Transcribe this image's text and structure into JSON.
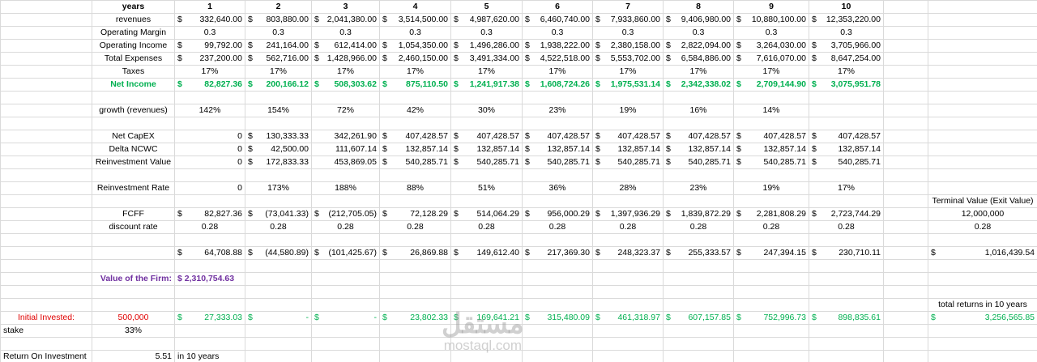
{
  "rows": [
    [
      null,
      "years",
      "1",
      "2",
      "3",
      "4",
      "5",
      "6",
      "7",
      "8",
      "9",
      "10",
      null,
      null
    ],
    [
      null,
      "revenues",
      [
        "$",
        "332,640.00"
      ],
      [
        "$",
        "803,880.00"
      ],
      [
        "$",
        "2,041,380.00"
      ],
      [
        "$",
        "3,514,500.00"
      ],
      [
        "$",
        "4,987,620.00"
      ],
      [
        "$",
        "6,460,740.00"
      ],
      [
        "$",
        "7,933,860.00"
      ],
      [
        "$",
        "9,406,980.00"
      ],
      [
        "$",
        "10,880,100.00"
      ],
      [
        "$",
        "12,353,220.00"
      ],
      null,
      null
    ],
    [
      null,
      "Operating Margin",
      "0.3",
      "0.3",
      "0.3",
      "0.3",
      "0.3",
      "0.3",
      "0.3",
      "0.3",
      "0.3",
      "0.3",
      null,
      null
    ],
    [
      null,
      "Operating Income",
      [
        "$",
        "99,792.00"
      ],
      [
        "$",
        "241,164.00"
      ],
      [
        "$",
        "612,414.00"
      ],
      [
        "$",
        "1,054,350.00"
      ],
      [
        "$",
        "1,496,286.00"
      ],
      [
        "$",
        "1,938,222.00"
      ],
      [
        "$",
        "2,380,158.00"
      ],
      [
        "$",
        "2,822,094.00"
      ],
      [
        "$",
        "3,264,030.00"
      ],
      [
        "$",
        "3,705,966.00"
      ],
      null,
      null
    ],
    [
      null,
      "Total Expenses",
      [
        "$",
        "237,200.00"
      ],
      [
        "$",
        "562,716.00"
      ],
      [
        "$",
        "1,428,966.00"
      ],
      [
        "$",
        "2,460,150.00"
      ],
      [
        "$",
        "3,491,334.00"
      ],
      [
        "$",
        "4,522,518.00"
      ],
      [
        "$",
        "5,553,702.00"
      ],
      [
        "$",
        "6,584,886.00"
      ],
      [
        "$",
        "7,616,070.00"
      ],
      [
        "$",
        "8,647,254.00"
      ],
      null,
      null
    ],
    [
      null,
      "Taxes",
      "17%",
      "17%",
      "17%",
      "17%",
      "17%",
      "17%",
      "17%",
      "17%",
      "17%",
      "17%",
      null,
      null
    ],
    [
      null,
      "Net Income",
      [
        "$",
        "82,827.36"
      ],
      [
        "$",
        "200,166.12"
      ],
      [
        "$",
        "508,303.62"
      ],
      [
        "$",
        "875,110.50"
      ],
      [
        "$",
        "1,241,917.38"
      ],
      [
        "$",
        "1,608,724.26"
      ],
      [
        "$",
        "1,975,531.14"
      ],
      [
        "$",
        "2,342,338.02"
      ],
      [
        "$",
        "2,709,144.90"
      ],
      [
        "$",
        "3,075,951.78"
      ],
      null,
      null
    ],
    [
      null,
      null,
      null,
      null,
      null,
      null,
      null,
      null,
      null,
      null,
      null,
      null,
      null,
      null
    ],
    [
      null,
      "growth (revenues)",
      "142%",
      "154%",
      "72%",
      "42%",
      "30%",
      "23%",
      "19%",
      "16%",
      "14%",
      null,
      null,
      null
    ],
    [
      null,
      null,
      null,
      null,
      null,
      null,
      null,
      null,
      null,
      null,
      null,
      null,
      null,
      null
    ],
    [
      null,
      "Net CapEX",
      "0",
      [
        "$",
        "130,333.33"
      ],
      "342,261.90",
      [
        "$",
        "407,428.57"
      ],
      [
        "$",
        "407,428.57"
      ],
      [
        "$",
        "407,428.57"
      ],
      [
        "$",
        "407,428.57"
      ],
      [
        "$",
        "407,428.57"
      ],
      [
        "$",
        "407,428.57"
      ],
      [
        "$",
        "407,428.57"
      ],
      null,
      null
    ],
    [
      null,
      "Delta NCWC",
      "0",
      [
        "$",
        "42,500.00"
      ],
      "111,607.14",
      [
        "$",
        "132,857.14"
      ],
      [
        "$",
        "132,857.14"
      ],
      [
        "$",
        "132,857.14"
      ],
      [
        "$",
        "132,857.14"
      ],
      [
        "$",
        "132,857.14"
      ],
      [
        "$",
        "132,857.14"
      ],
      [
        "$",
        "132,857.14"
      ],
      null,
      null
    ],
    [
      null,
      "Reinvestment Value",
      "0",
      [
        "$",
        "172,833.33"
      ],
      "453,869.05",
      [
        "$",
        "540,285.71"
      ],
      [
        "$",
        "540,285.71"
      ],
      [
        "$",
        "540,285.71"
      ],
      [
        "$",
        "540,285.71"
      ],
      [
        "$",
        "540,285.71"
      ],
      [
        "$",
        "540,285.71"
      ],
      [
        "$",
        "540,285.71"
      ],
      null,
      null
    ],
    [
      null,
      null,
      null,
      null,
      null,
      null,
      null,
      null,
      null,
      null,
      null,
      null,
      null,
      null
    ],
    [
      null,
      "Reinvestment Rate",
      "0",
      "173%",
      "188%",
      "88%",
      "51%",
      "36%",
      "28%",
      "23%",
      "19%",
      "17%",
      null,
      null
    ],
    [
      null,
      null,
      null,
      null,
      null,
      null,
      null,
      null,
      null,
      null,
      null,
      null,
      null,
      "Terminal Value (Exit Value)"
    ],
    [
      null,
      "FCFF",
      [
        "$",
        "82,827.36"
      ],
      [
        "$",
        "(73,041.33)"
      ],
      [
        "$",
        "(212,705.05)"
      ],
      [
        "$",
        "72,128.29"
      ],
      [
        "$",
        "514,064.29"
      ],
      [
        "$",
        "956,000.29"
      ],
      [
        "$",
        "1,397,936.29"
      ],
      [
        "$",
        "1,839,872.29"
      ],
      [
        "$",
        "2,281,808.29"
      ],
      [
        "$",
        "2,723,744.29"
      ],
      null,
      "12,000,000"
    ],
    [
      null,
      "discount rate",
      "0.28",
      "0.28",
      "0.28",
      "0.28",
      "0.28",
      "0.28",
      "0.28",
      "0.28",
      "0.28",
      "0.28",
      null,
      "0.28"
    ],
    [
      null,
      null,
      null,
      null,
      null,
      null,
      null,
      null,
      null,
      null,
      null,
      null,
      null,
      null
    ],
    [
      null,
      null,
      [
        "$",
        "64,708.88"
      ],
      [
        "$",
        "(44,580.89)"
      ],
      [
        "$",
        "(101,425.67)"
      ],
      [
        "$",
        "26,869.88"
      ],
      [
        "$",
        "149,612.40"
      ],
      [
        "$",
        "217,369.30"
      ],
      [
        "$",
        "248,323.37"
      ],
      [
        "$",
        "255,333.57"
      ],
      [
        "$",
        "247,394.15"
      ],
      [
        "$",
        "230,710.11"
      ],
      null,
      [
        "$",
        "1,016,439.54"
      ]
    ],
    [
      null,
      null,
      null,
      null,
      null,
      null,
      null,
      null,
      null,
      null,
      null,
      null,
      null,
      null
    ],
    [
      null,
      "Value of the Firm:",
      "$ 2,310,754.63",
      null,
      null,
      null,
      null,
      null,
      null,
      null,
      null,
      null,
      null,
      null
    ],
    [
      null,
      null,
      null,
      null,
      null,
      null,
      null,
      null,
      null,
      null,
      null,
      null,
      null,
      null
    ],
    [
      null,
      null,
      null,
      null,
      null,
      null,
      null,
      null,
      null,
      null,
      null,
      null,
      null,
      "total returns in 10 years"
    ],
    [
      "Initial Invested:",
      "500,000",
      [
        "$",
        "27,333.03"
      ],
      [
        "$",
        "-"
      ],
      [
        "$",
        "-"
      ],
      [
        "$",
        "23,802.33"
      ],
      [
        "$",
        "169,641.21"
      ],
      [
        "$",
        "315,480.09"
      ],
      [
        "$",
        "461,318.97"
      ],
      [
        "$",
        "607,157.85"
      ],
      [
        "$",
        "752,996.73"
      ],
      [
        "$",
        "898,835.61"
      ],
      null,
      [
        "$",
        "3,256,565.85"
      ]
    ],
    [
      "stake",
      "33%",
      null,
      null,
      null,
      null,
      null,
      null,
      null,
      null,
      null,
      null,
      null,
      null
    ],
    [
      null,
      null,
      null,
      null,
      null,
      null,
      null,
      null,
      null,
      null,
      null,
      null,
      null,
      null
    ],
    [
      "Return On Investment",
      "5.51",
      "in 10 years",
      null,
      null,
      null,
      null,
      null,
      null,
      null,
      null,
      null,
      null,
      null
    ]
  ],
  "watermark": {
    "arabic": "مستقل",
    "latin": "mostaql.com"
  }
}
